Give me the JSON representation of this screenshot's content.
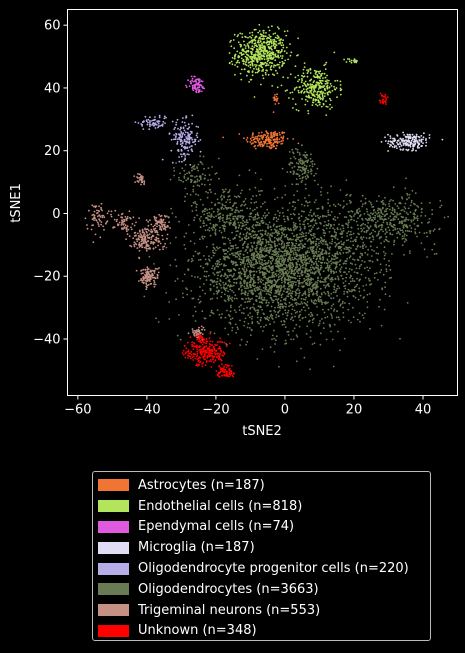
{
  "chart_data": {
    "type": "scatter",
    "xlabel": "tSNE2",
    "ylabel": "tSNE1",
    "xlim": [
      -63,
      50
    ],
    "ylim": [
      -58,
      65
    ],
    "xticks": [
      -60,
      -40,
      -20,
      0,
      20,
      40
    ],
    "yticks": [
      -40,
      -20,
      0,
      20,
      40,
      60
    ],
    "grid": false,
    "legend_position": "below",
    "series": [
      {
        "name": "Astrocytes (n=187)",
        "color": "#f07533",
        "clusters": [
          {
            "cx": -5,
            "cy": 23.5,
            "sx": 3.2,
            "sy": 1.6,
            "n": 170
          },
          {
            "cx": -2.5,
            "cy": 36.5,
            "sx": 0.5,
            "sy": 1.0,
            "n": 17
          }
        ]
      },
      {
        "name": "Endothelial cells (n=818)",
        "color": "#b3e55c",
        "clusters": [
          {
            "cx": -7,
            "cy": 51,
            "sx": 3.6,
            "sy": 3.6,
            "n": 520
          },
          {
            "cx": 9,
            "cy": 40,
            "sx": 3.2,
            "sy": 3.3,
            "n": 280
          },
          {
            "cx": 19.5,
            "cy": 48.5,
            "sx": 1.0,
            "sy": 0.5,
            "n": 18
          }
        ]
      },
      {
        "name": "Ependymal cells (n=74)",
        "color": "#e05ae0",
        "clusters": [
          {
            "cx": -25.5,
            "cy": 41,
            "sx": 1.3,
            "sy": 1.3,
            "n": 74
          }
        ]
      },
      {
        "name": "Microglia (n=187)",
        "color": "#e0dcf3",
        "clusters": [
          {
            "cx": 36,
            "cy": 23,
            "sx": 3.0,
            "sy": 1.3,
            "n": 187
          }
        ]
      },
      {
        "name": "Oligodendrocyte progenitor cells (n=220)",
        "color": "#b6ace8",
        "clusters": [
          {
            "cx": -29,
            "cy": 23.5,
            "sx": 2.0,
            "sy": 3.0,
            "n": 155
          },
          {
            "cx": -38,
            "cy": 29,
            "sx": 2.2,
            "sy": 1.2,
            "n": 65
          }
        ]
      },
      {
        "name": "Oligodendrocytes (n=3663)",
        "color": "#687b52",
        "clusters": [
          {
            "cx": -4,
            "cy": -18,
            "sx": 11,
            "sy": 9,
            "n": 2000
          },
          {
            "cx": 10,
            "cy": -15,
            "sx": 10,
            "sy": 10,
            "n": 800
          },
          {
            "cx": 30,
            "cy": -2,
            "sx": 7,
            "sy": 4,
            "n": 400
          },
          {
            "cx": -17,
            "cy": 0,
            "sx": 5,
            "sy": 5,
            "n": 260
          },
          {
            "cx": 5,
            "cy": 15,
            "sx": 2,
            "sy": 3,
            "n": 120
          },
          {
            "cx": -26,
            "cy": 12,
            "sx": 2.5,
            "sy": 3,
            "n": 83
          }
        ]
      },
      {
        "name": "Trigeminal neurons (n=553)",
        "color": "#c79085",
        "clusters": [
          {
            "cx": -54.5,
            "cy": -1,
            "sx": 1.5,
            "sy": 2.3,
            "n": 60
          },
          {
            "cx": -47,
            "cy": -2.5,
            "sx": 1.6,
            "sy": 1.4,
            "n": 60
          },
          {
            "cx": -42,
            "cy": 11,
            "sx": 0.8,
            "sy": 0.8,
            "n": 30
          },
          {
            "cx": -40.5,
            "cy": -8,
            "sx": 2.4,
            "sy": 2.0,
            "n": 160
          },
          {
            "cx": -36,
            "cy": -3.5,
            "sx": 1.3,
            "sy": 1.8,
            "n": 80
          },
          {
            "cx": -39.5,
            "cy": -20,
            "sx": 1.4,
            "sy": 1.5,
            "n": 120
          },
          {
            "cx": -25,
            "cy": -38,
            "sx": 1.0,
            "sy": 1.0,
            "n": 43
          }
        ]
      },
      {
        "name": "Unknown (n=348)",
        "color": "#ff0000",
        "clusters": [
          {
            "cx": -23,
            "cy": -44.5,
            "sx": 3.0,
            "sy": 2.0,
            "n": 220
          },
          {
            "cx": -17,
            "cy": -50.5,
            "sx": 1.4,
            "sy": 1.3,
            "n": 70
          },
          {
            "cx": -24,
            "cy": -40,
            "sx": 1.0,
            "sy": 0.8,
            "n": 30
          },
          {
            "cx": 28.5,
            "cy": 36.5,
            "sx": 0.8,
            "sy": 1.0,
            "n": 28
          }
        ]
      }
    ]
  }
}
